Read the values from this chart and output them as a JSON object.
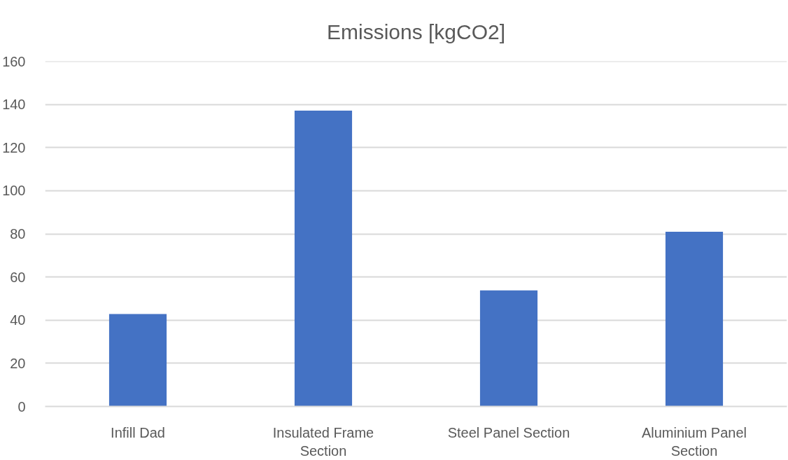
{
  "chart_data": {
    "type": "bar",
    "title": "Emissions [kgCO2]",
    "categories": [
      "Infill Dad",
      "Insulated Frame Section",
      "Steel Panel Section",
      "Aluminium Panel Section"
    ],
    "values": [
      42.8,
      137.1,
      53.8,
      81
    ],
    "color": "#4472c4",
    "ylim": [
      0,
      160
    ],
    "yticks": [
      0,
      20,
      40,
      60,
      80,
      100,
      120,
      140,
      160
    ],
    "grid": "y"
  }
}
